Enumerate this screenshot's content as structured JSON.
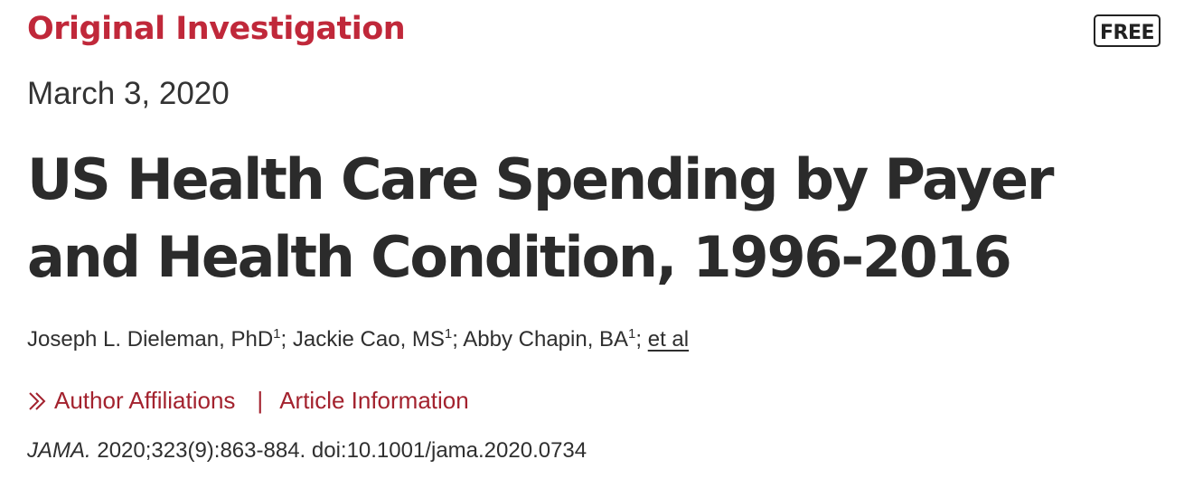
{
  "article": {
    "type_label": "Original Investigation",
    "access_badge": "FREE",
    "date": "March 3, 2020",
    "title": "US Health Care Spending by Payer and Health Condition, 1996-2016",
    "authors": [
      {
        "name": "Joseph L. Dieleman, PhD",
        "affiliation": "1"
      },
      {
        "name": "Jackie Cao, MS",
        "affiliation": "1"
      },
      {
        "name": "Abby Chapin, BA",
        "affiliation": "1"
      }
    ],
    "et_al_label": "et al",
    "links": {
      "author_affiliations": "Author Affiliations",
      "separator": "|",
      "article_information": "Article Information"
    },
    "citation": {
      "journal": "JAMA.",
      "details": "2020;323(9):863-884. doi:10.1001/jama.2020.0734"
    }
  },
  "colors": {
    "accent_red": "#c0283a",
    "link_red": "#a3222e",
    "text_dark": "#2b2b2b"
  },
  "icons": {
    "expand": "double-chevron-right-icon"
  }
}
